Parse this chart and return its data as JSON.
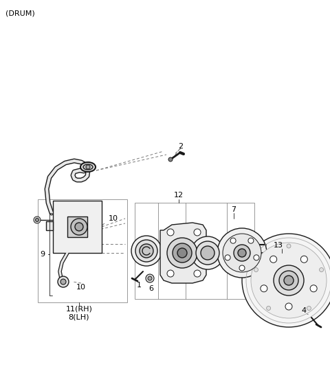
{
  "title": "(DRUM)",
  "bg_color": "#ffffff",
  "line_color": "#1a1a1a",
  "figsize": [
    4.8,
    5.34
  ],
  "dpi": 100
}
